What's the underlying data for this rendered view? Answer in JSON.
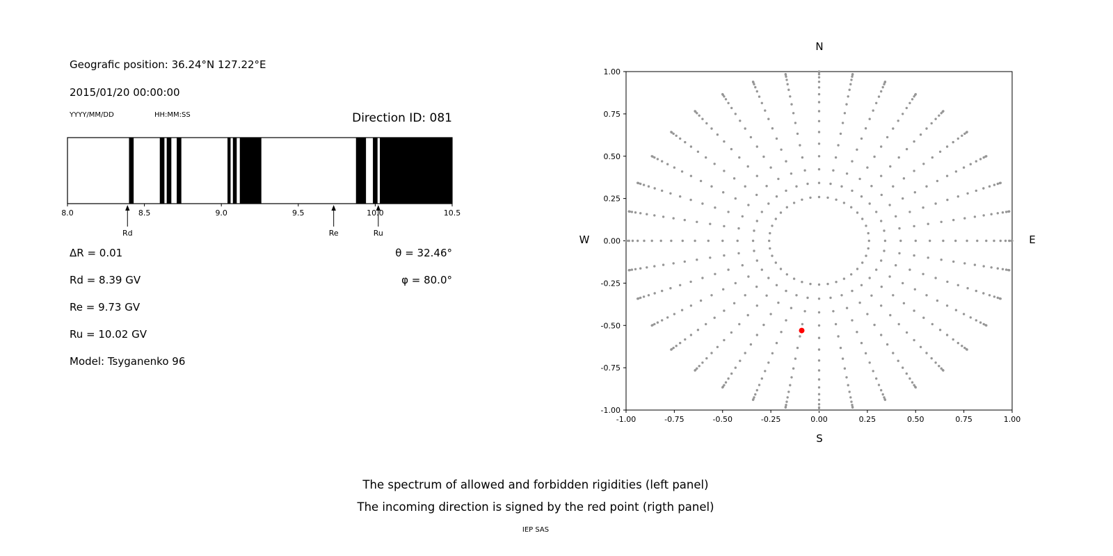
{
  "info": {
    "geo_position": "Geografic position: 36.24°N 127.22°E",
    "datetime": "2015/01/20 00:00:00",
    "date_format": "YYYY/MM/DD",
    "time_format": "HH:MM:SS",
    "direction_id": "Direction ID: 081",
    "delta_r": "ΔR = 0.01",
    "theta": "θ = 32.46°",
    "rd": "Rd = 8.39 GV",
    "phi": "φ = 80.0°",
    "re": "Re = 9.73 GV",
    "ru": "Ru = 10.02 GV",
    "model": "Model: Tsyganenko 96"
  },
  "caption": {
    "line1": "The spectrum of allowed and forbidden rigidities (left panel)",
    "line2": "The incoming direction is signed by the red point (rigth panel)",
    "credit": "IEP SAS"
  },
  "chart_data": [
    {
      "type": "bar",
      "title": "Direction ID: 081",
      "xlim": [
        8.0,
        10.5
      ],
      "xticks": [
        8.0,
        8.5,
        9.0,
        9.5,
        10.0,
        10.5
      ],
      "bar_color": "#000000",
      "background": "#ffffff",
      "allowed_bands": [
        [
          8.4,
          8.43
        ],
        [
          8.6,
          8.63
        ],
        [
          8.645,
          8.675
        ],
        [
          8.71,
          8.74
        ],
        [
          9.04,
          9.06
        ],
        [
          9.075,
          9.1
        ],
        [
          9.12,
          9.26
        ],
        [
          9.875,
          9.94
        ],
        [
          9.985,
          10.015
        ],
        [
          10.03,
          10.5
        ]
      ],
      "markers": [
        {
          "label": "Rd",
          "x": 8.39
        },
        {
          "label": "Re",
          "x": 9.73
        },
        {
          "label": "Ru",
          "x": 10.02
        }
      ]
    },
    {
      "type": "scatter",
      "xlim": [
        -1.0,
        1.0
      ],
      "ylim": [
        -1.0,
        1.0
      ],
      "xticks": [
        -1.0,
        -0.75,
        -0.5,
        -0.25,
        0.0,
        0.25,
        0.5,
        0.75,
        1.0
      ],
      "yticks": [
        -1.0,
        -0.75,
        -0.5,
        -0.25,
        0.0,
        0.25,
        0.5,
        0.75,
        1.0
      ],
      "grid": false,
      "dot_color": "#969696",
      "spokes": {
        "azimuth_start_deg": 0,
        "azimuth_step_deg": 10,
        "azimuth_count": 36,
        "zenith_start_deg": 15,
        "zenith_end_deg": 90,
        "zenith_step_deg": 5,
        "radius_rule": "sin(zenith)"
      },
      "red_point": {
        "x": -0.09,
        "y": -0.53,
        "color": "#ff0000"
      },
      "compass": {
        "top": "N",
        "bottom": "S",
        "left": "W",
        "right": "E"
      }
    }
  ]
}
